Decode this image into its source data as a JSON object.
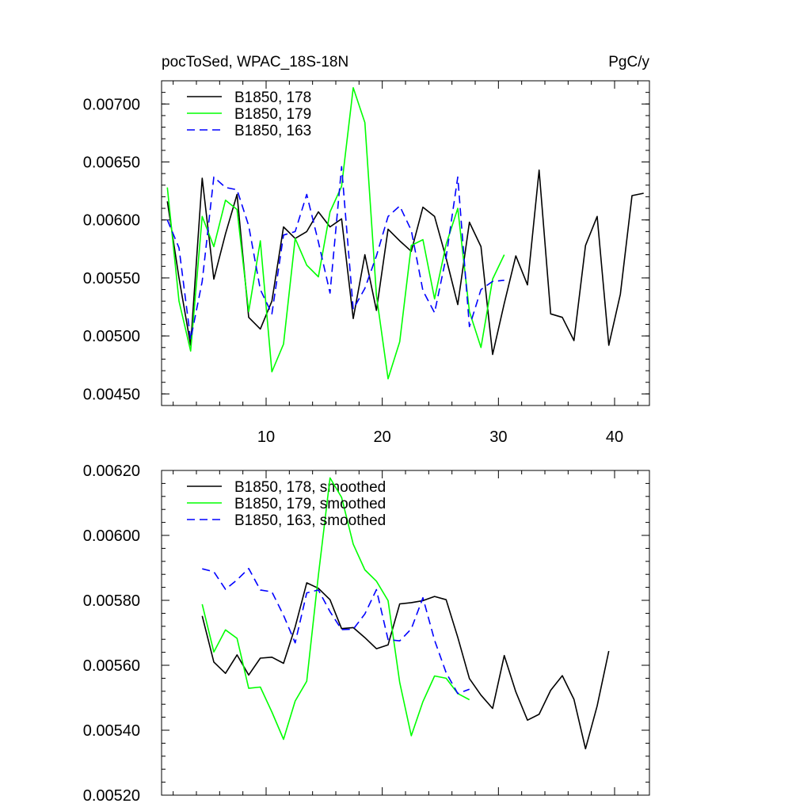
{
  "chart_data": [
    {
      "type": "line",
      "title": "pocToSed, WPAC_18S-18N",
      "units": "PgC/y",
      "xlim": [
        1,
        43
      ],
      "ylim": [
        0.0044,
        0.0072
      ],
      "x_ticks": [
        10,
        20,
        30,
        40
      ],
      "x_tick_labels": [
        "10",
        "20",
        "30",
        "40"
      ],
      "y_ticks": [
        0.0045,
        0.005,
        0.0055,
        0.006,
        0.0065,
        0.007
      ],
      "y_tick_labels": [
        "0.00450",
        "0.00500",
        "0.00550",
        "0.00600",
        "0.00650",
        "0.00700"
      ],
      "legend_position": "top-left",
      "series": [
        {
          "name": "B1850, 178",
          "color": "#000000",
          "dash": "solid",
          "x": [
            1.5,
            2.5,
            3.5,
            4.5,
            5.5,
            6.5,
            7.5,
            8.5,
            9.5,
            10.5,
            11.5,
            12.5,
            13.5,
            14.5,
            15.5,
            16.5,
            17.5,
            18.5,
            19.5,
            20.5,
            21.5,
            22.5,
            23.5,
            24.5,
            25.5,
            26.5,
            27.5,
            28.5,
            29.5,
            30.5,
            31.5,
            32.5,
            33.5,
            34.5,
            35.5,
            36.5,
            37.5,
            38.5,
            39.5,
            40.5,
            41.5,
            42.5
          ],
          "y": [
            0.00616,
            0.0055,
            0.00492,
            0.00636,
            0.00549,
            0.00588,
            0.00622,
            0.00516,
            0.00506,
            0.0053,
            0.00594,
            0.00584,
            0.0059,
            0.00607,
            0.00594,
            0.00601,
            0.00515,
            0.0057,
            0.00522,
            0.00592,
            0.00582,
            0.00573,
            0.00611,
            0.00603,
            0.00567,
            0.00527,
            0.00598,
            0.00577,
            0.00484,
            0.00528,
            0.00569,
            0.00544,
            0.00643,
            0.00519,
            0.00516,
            0.00496,
            0.00578,
            0.00603,
            0.00492,
            0.00536,
            0.00621,
            0.00623
          ]
        },
        {
          "name": "B1850, 179",
          "color": "#00ff00",
          "dash": "solid",
          "x": [
            1.5,
            2.5,
            3.5,
            4.5,
            5.5,
            6.5,
            7.5,
            8.5,
            9.5,
            10.5,
            11.5,
            12.5,
            13.5,
            14.5,
            15.5,
            16.5,
            17.5,
            18.5,
            19.5,
            20.5,
            21.5,
            22.5,
            23.5,
            24.5,
            25.5,
            26.5,
            27.5,
            28.5,
            29.5,
            30.5
          ],
          "y": [
            0.00628,
            0.0053,
            0.00487,
            0.00603,
            0.00577,
            0.00617,
            0.00609,
            0.00521,
            0.00582,
            0.00469,
            0.00493,
            0.00584,
            0.00561,
            0.00551,
            0.00607,
            0.00629,
            0.00714,
            0.00684,
            0.00535,
            0.00463,
            0.00495,
            0.00578,
            0.00583,
            0.00532,
            0.00579,
            0.0061,
            0.00521,
            0.0049,
            0.00549,
            0.0057
          ]
        },
        {
          "name": "B1850, 163",
          "color": "#0000ff",
          "dash": "dashed",
          "x": [
            1.5,
            2.5,
            3.5,
            4.5,
            5.5,
            6.5,
            7.5,
            8.5,
            9.5,
            10.5,
            11.5,
            12.5,
            13.5,
            14.5,
            15.5,
            16.5,
            17.5,
            18.5,
            19.5,
            20.5,
            21.5,
            22.5,
            23.5,
            24.5,
            25.5,
            26.5,
            27.5,
            28.5,
            29.5,
            30.5
          ],
          "y": [
            0.006,
            0.00576,
            0.00497,
            0.00547,
            0.00637,
            0.00628,
            0.00626,
            0.00595,
            0.0054,
            0.00519,
            0.00587,
            0.0059,
            0.00622,
            0.00581,
            0.00537,
            0.00646,
            0.00523,
            0.00541,
            0.00569,
            0.00603,
            0.00612,
            0.00591,
            0.00539,
            0.0052,
            0.00568,
            0.00637,
            0.00508,
            0.0054,
            0.00547,
            0.00548
          ]
        }
      ]
    },
    {
      "type": "line",
      "xlim": [
        1,
        43
      ],
      "ylim": [
        0.0052,
        0.0062
      ],
      "x_ticks": [
        10,
        20,
        30,
        40
      ],
      "x_tick_labels": [
        "",
        "",
        "",
        ""
      ],
      "y_ticks": [
        0.0052,
        0.0054,
        0.0056,
        0.0058,
        0.006,
        0.0062
      ],
      "y_tick_labels": [
        "0.00520",
        "0.00540",
        "0.00560",
        "0.00580",
        "0.00600",
        "0.00620"
      ],
      "legend_position": "top-left",
      "series": [
        {
          "name": "B1850, 178, smoothed",
          "color": "#000000",
          "dash": "solid",
          "x": [
            4.5,
            5.5,
            6.5,
            7.5,
            8.5,
            9.5,
            10.5,
            11.5,
            12.5,
            13.5,
            14.5,
            15.5,
            16.5,
            17.5,
            18.5,
            19.5,
            20.5,
            21.5,
            22.5,
            23.5,
            24.5,
            25.5,
            26.5,
            27.5,
            28.5,
            29.5,
            30.5,
            31.5,
            32.5,
            33.5,
            34.5,
            35.5,
            36.5,
            37.5,
            38.5,
            39.5
          ],
          "y": [
            0.005752,
            0.00561,
            0.005575,
            0.005632,
            0.00557,
            0.005622,
            0.005625,
            0.005606,
            0.005718,
            0.005854,
            0.005837,
            0.005802,
            0.005713,
            0.005716,
            0.005685,
            0.005651,
            0.005663,
            0.005789,
            0.005793,
            0.005799,
            0.005812,
            0.005802,
            0.005686,
            0.005559,
            0.005508,
            0.005467,
            0.00563,
            0.005518,
            0.005431,
            0.005449,
            0.005523,
            0.005568,
            0.005495,
            0.005343,
            0.005475,
            0.005644
          ]
        },
        {
          "name": "B1850, 179, smoothed",
          "color": "#00ff00",
          "dash": "solid",
          "x": [
            4.5,
            5.5,
            6.5,
            7.5,
            8.5,
            9.5,
            10.5,
            11.5,
            12.5,
            13.5,
            14.5,
            15.5,
            16.5,
            17.5,
            18.5,
            19.5,
            20.5,
            21.5,
            22.5,
            23.5,
            24.5,
            25.5,
            26.5,
            27.5
          ],
          "y": [
            0.005788,
            0.005641,
            0.005709,
            0.005683,
            0.005529,
            0.005533,
            0.005456,
            0.005372,
            0.00549,
            0.005551,
            0.005877,
            0.006177,
            0.006117,
            0.005973,
            0.005894,
            0.005859,
            0.005799,
            0.005547,
            0.005383,
            0.005488,
            0.005567,
            0.00556,
            0.005513,
            0.005494
          ]
        },
        {
          "name": "B1850, 163, smoothed",
          "color": "#0000ff",
          "dash": "dashed",
          "x": [
            4.5,
            5.5,
            6.5,
            7.5,
            8.5,
            9.5,
            10.5,
            11.5,
            12.5,
            13.5,
            14.5,
            15.5,
            16.5,
            17.5,
            18.5,
            19.5,
            20.5,
            21.5,
            22.5,
            23.5,
            24.5,
            25.5,
            26.5,
            27.5
          ],
          "y": [
            0.005897,
            0.005888,
            0.005834,
            0.005863,
            0.005898,
            0.005832,
            0.005826,
            0.005754,
            0.005669,
            0.005823,
            0.005832,
            0.005765,
            0.00571,
            0.005711,
            0.005758,
            0.005833,
            0.005679,
            0.005675,
            0.005712,
            0.005808,
            0.005677,
            0.005577,
            0.005513,
            0.005526
          ]
        }
      ]
    }
  ]
}
